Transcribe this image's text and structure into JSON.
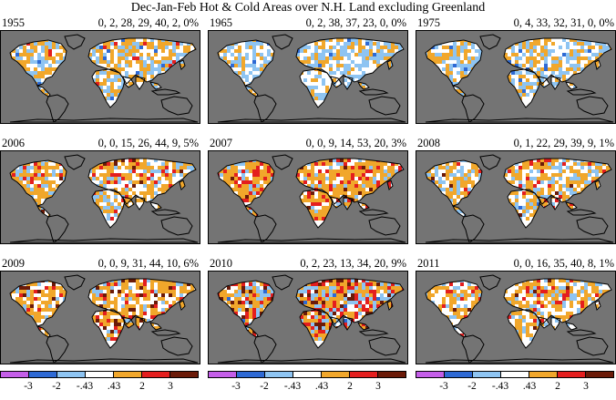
{
  "title": "Dec-Jan-Feb Hot & Cold Areas over N.H. Land excluding Greenland",
  "colors": {
    "ocean": "#747474",
    "land_neutral": "#ffffff",
    "coast": "#000000",
    "classes": [
      "#c45ee8",
      "#2e69d4",
      "#8ec4f2",
      "#ffffff",
      "#f1a72b",
      "#e41e1e",
      "#6b1a08"
    ]
  },
  "panels": [
    {
      "year": "1955",
      "stats": "0, 2, 28, 29, 40, 2, 0%"
    },
    {
      "year": "1965",
      "stats": "0, 2, 38, 37, 23, 0, 0%"
    },
    {
      "year": "1975",
      "stats": "0, 4, 33, 32, 31, 0, 0%"
    },
    {
      "year": "2006",
      "stats": "0, 0, 15, 26, 44, 9, 5%"
    },
    {
      "year": "2007",
      "stats": "0, 0, 9, 14, 53, 20, 3%"
    },
    {
      "year": "2008",
      "stats": "0, 1, 22, 29, 39, 9, 1%"
    },
    {
      "year": "2009",
      "stats": "0, 0, 9, 31, 44, 10, 6%"
    },
    {
      "year": "2010",
      "stats": "0, 2, 23, 13, 34, 20, 9%"
    },
    {
      "year": "2011",
      "stats": "0, 0, 16, 35, 40, 8, 1%"
    }
  ],
  "legend": {
    "ticks": [
      "-3",
      "-2",
      "-.43",
      ".43",
      "2",
      "3"
    ]
  }
}
